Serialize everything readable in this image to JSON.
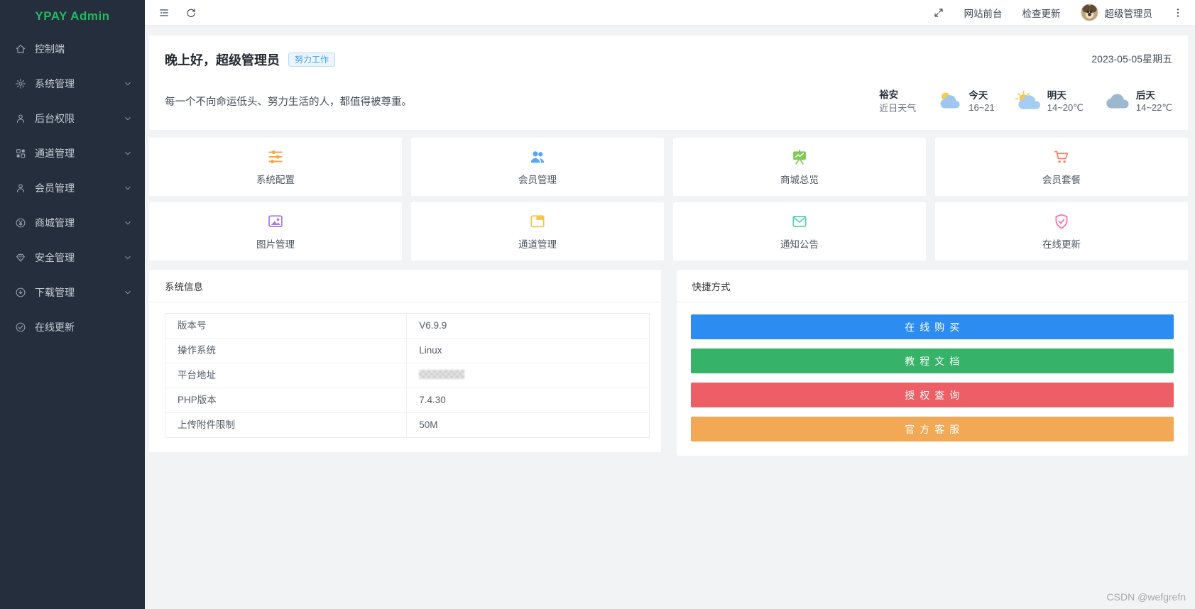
{
  "app_title": "YPAY Admin",
  "sidebar": {
    "logo": "YPAY Admin",
    "items": [
      {
        "name": "control-panel",
        "label": "控制端",
        "icon": "home-icon",
        "expandable": false
      },
      {
        "name": "system-management",
        "label": "系统管理",
        "icon": "gear-icon",
        "expandable": true
      },
      {
        "name": "admin-permissions",
        "label": "后台权限",
        "icon": "user-icon",
        "expandable": true
      },
      {
        "name": "channel-management",
        "label": "通道管理",
        "icon": "grid-icon",
        "expandable": true
      },
      {
        "name": "member-management",
        "label": "会员管理",
        "icon": "user-icon",
        "expandable": true
      },
      {
        "name": "mall-management",
        "label": "商城管理",
        "icon": "yen-circle-icon",
        "expandable": true
      },
      {
        "name": "security-management",
        "label": "安全管理",
        "icon": "gem-icon",
        "expandable": true
      },
      {
        "name": "download-management",
        "label": "下载管理",
        "icon": "download-circle-icon",
        "expandable": true
      },
      {
        "name": "online-update",
        "label": "在线更新",
        "icon": "check-circle-icon",
        "expandable": false
      }
    ]
  },
  "topbar": {
    "site_front_label": "网站前台",
    "check_update_label": "检查更新",
    "username": "超级管理员"
  },
  "greeting": {
    "title": "晚上好，超级管理员",
    "badge": "努力工作",
    "subtitle": "每一个不向命运低头、努力生活的人，都值得被尊重。",
    "date": "2023-05-05星期五",
    "weather": {
      "city": "裕安",
      "caption": "近日天气",
      "forecast": [
        {
          "day": "今天",
          "temp": "16~21",
          "icon": "cloud-sun-icon"
        },
        {
          "day": "明天",
          "temp": "14~20℃",
          "icon": "sun-cloud-icon"
        },
        {
          "day": "后天",
          "temp": "14~22℃",
          "icon": "cloud-icon"
        }
      ]
    }
  },
  "shortcut_cards": [
    {
      "name": "system-config",
      "label": "系统配置",
      "icon": "sliders-icon",
      "color": "#f7a84e"
    },
    {
      "name": "member-management",
      "label": "会员管理",
      "icon": "people-icon",
      "color": "#55a8f8"
    },
    {
      "name": "mall-overview",
      "label": "商城总览",
      "icon": "board-chart-icon",
      "color": "#7ecb52"
    },
    {
      "name": "member-packages",
      "label": "会员套餐",
      "icon": "cart-icon",
      "color": "#f87d5f"
    },
    {
      "name": "image-management",
      "label": "图片管理",
      "icon": "image-icon",
      "color": "#a77ce4"
    },
    {
      "name": "channel-management",
      "label": "通道管理",
      "icon": "window-icon",
      "color": "#f5c24a"
    },
    {
      "name": "notice-announcement",
      "label": "通知公告",
      "icon": "envelope-icon",
      "color": "#5fd3b4"
    },
    {
      "name": "online-update",
      "label": "在线更新",
      "icon": "shield-check-icon",
      "color": "#f576a7"
    }
  ],
  "system_info": {
    "title": "系统信息",
    "rows": [
      {
        "label": "版本号",
        "value": "V6.9.9",
        "redacted": false
      },
      {
        "label": "操作系统",
        "value": "Linux",
        "redacted": false
      },
      {
        "label": "平台地址",
        "value": "",
        "redacted": true
      },
      {
        "label": "PHP版本",
        "value": "7.4.30",
        "redacted": false
      },
      {
        "label": "上传附件限制",
        "value": "50M",
        "redacted": false
      }
    ]
  },
  "quick_actions": {
    "title": "快捷方式",
    "buttons": [
      {
        "name": "buy-online",
        "label": "在线购买",
        "color": "#2d8cf0"
      },
      {
        "name": "tutorial-docs",
        "label": "教程文档",
        "color": "#36b269"
      },
      {
        "name": "license-query",
        "label": "授权查询",
        "color": "#ed5e66"
      },
      {
        "name": "official-support",
        "label": "官方客服",
        "color": "#f2a854"
      }
    ]
  },
  "watermark": "CSDN @wefgrefn"
}
